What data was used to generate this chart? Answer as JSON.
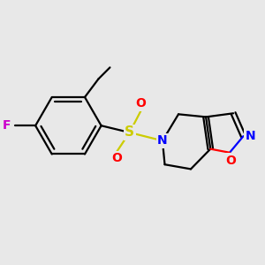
{
  "background_color": "#e8e8e8",
  "atom_colors": {
    "C": "#000000",
    "N": "#0000ff",
    "O": "#ff0000",
    "S": "#cccc00",
    "F": "#cc00cc"
  },
  "bond_lw": 1.6,
  "font_size": 10,
  "figsize": [
    3.0,
    3.0
  ],
  "dpi": 100,
  "xlim": [
    -2.8,
    2.8
  ],
  "ylim": [
    -2.2,
    2.2
  ]
}
